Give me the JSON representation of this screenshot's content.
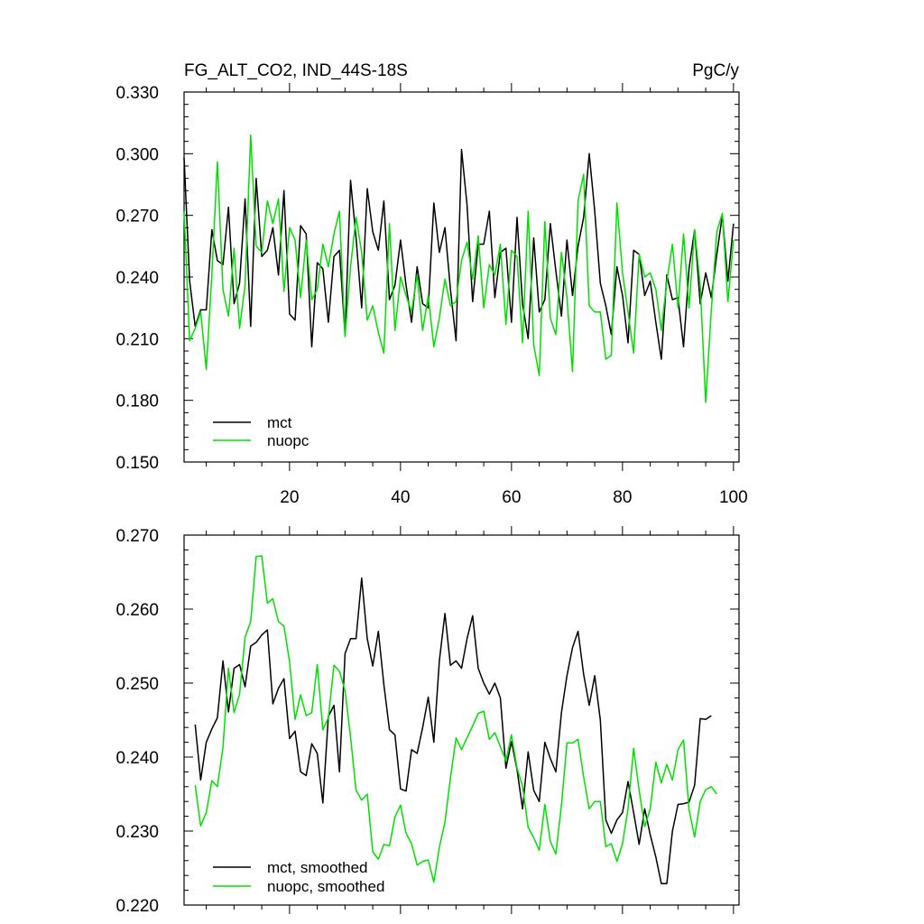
{
  "colors": {
    "mct": "#000000",
    "nuopc": "#00e000"
  },
  "chart_data": [
    {
      "type": "line",
      "title": "FG_ALT_CO2, IND_44S-18S",
      "title_right": "PgC/y",
      "xlabel": "",
      "ylabel": "",
      "xlim": [
        1,
        101
      ],
      "ylim": [
        0.15,
        0.33
      ],
      "x_ticks": [
        20,
        40,
        60,
        80,
        100
      ],
      "x_tick_labels": [
        "20",
        "40",
        "60",
        "80",
        "100"
      ],
      "y_ticks": [
        0.15,
        0.18,
        0.21,
        0.24,
        0.27,
        0.3,
        0.33
      ],
      "y_tick_labels": [
        "0.150",
        "0.180",
        "0.210",
        "0.240",
        "0.270",
        "0.300",
        "0.330"
      ],
      "legend_position": "bottom-left",
      "grid": false,
      "x_start": 1,
      "series": [
        {
          "name": "mct",
          "color": "#000000",
          "values": [
            0.298,
            0.238,
            0.216,
            0.224,
            0.224,
            0.263,
            0.248,
            0.246,
            0.274,
            0.227,
            0.237,
            0.278,
            0.216,
            0.288,
            0.25,
            0.253,
            0.264,
            0.241,
            0.282,
            0.222,
            0.219,
            0.265,
            0.261,
            0.206,
            0.247,
            0.244,
            0.218,
            0.25,
            0.253,
            0.212,
            0.287,
            0.259,
            0.225,
            0.283,
            0.262,
            0.253,
            0.277,
            0.229,
            0.236,
            0.258,
            0.236,
            0.218,
            0.245,
            0.227,
            0.225,
            0.276,
            0.252,
            0.264,
            0.234,
            0.209,
            0.302,
            0.275,
            0.228,
            0.256,
            0.256,
            0.272,
            0.23,
            0.252,
            0.254,
            0.218,
            0.269,
            0.227,
            0.21,
            0.259,
            0.223,
            0.229,
            0.266,
            0.243,
            0.221,
            0.258,
            0.231,
            0.255,
            0.269,
            0.3,
            0.272,
            0.237,
            0.226,
            0.212,
            0.245,
            0.231,
            0.208,
            0.253,
            0.251,
            0.231,
            0.238,
            0.218,
            0.2,
            0.241,
            0.229,
            0.23,
            0.206,
            0.244,
            0.263,
            0.227,
            0.242,
            0.23,
            0.251,
            0.27,
            0.238,
            0.266
          ]
        },
        {
          "name": "nuopc",
          "color": "#00e000",
          "values": [
            0.272,
            0.209,
            0.215,
            0.223,
            0.195,
            0.241,
            0.296,
            0.234,
            0.221,
            0.254,
            0.215,
            0.236,
            0.309,
            0.255,
            0.252,
            0.277,
            0.266,
            0.278,
            0.233,
            0.264,
            0.258,
            0.23,
            0.258,
            0.229,
            0.234,
            0.256,
            0.245,
            0.261,
            0.272,
            0.211,
            0.245,
            0.269,
            0.252,
            0.219,
            0.226,
            0.213,
            0.203,
            0.266,
            0.214,
            0.24,
            0.231,
            0.223,
            0.241,
            0.214,
            0.231,
            0.206,
            0.22,
            0.239,
            0.226,
            0.228,
            0.248,
            0.257,
            0.239,
            0.26,
            0.225,
            0.246,
            0.241,
            0.256,
            0.217,
            0.253,
            0.25,
            0.208,
            0.272,
            0.207,
            0.192,
            0.267,
            0.22,
            0.212,
            0.252,
            0.23,
            0.194,
            0.277,
            0.29,
            0.226,
            0.223,
            0.223,
            0.2,
            0.202,
            0.276,
            0.242,
            0.223,
            0.203,
            0.251,
            0.24,
            0.242,
            0.234,
            0.214,
            0.238,
            0.256,
            0.225,
            0.261,
            0.225,
            0.263,
            0.236,
            0.179,
            0.224,
            0.262,
            0.271,
            0.228,
            0.258
          ]
        }
      ]
    },
    {
      "type": "line",
      "title": "",
      "xlabel": "",
      "ylabel": "",
      "xlim": [
        1,
        101
      ],
      "ylim": [
        0.22,
        0.27
      ],
      "x_ticks": [
        20,
        40,
        60,
        80,
        100
      ],
      "x_tick_labels": [],
      "y_ticks": [
        0.22,
        0.23,
        0.24,
        0.25,
        0.26,
        0.27
      ],
      "y_tick_labels": [
        "0.220",
        "0.230",
        "0.240",
        "0.250",
        "0.260",
        "0.270"
      ],
      "legend_position": "bottom-left",
      "grid": false,
      "x_start": 3,
      "series": [
        {
          "name": "mct, smoothed",
          "color": "#000000",
          "values": [
            0.2444,
            0.2369,
            0.242,
            0.2438,
            0.2453,
            0.253,
            0.2461,
            0.252,
            0.2525,
            0.2495,
            0.255,
            0.2555,
            0.2565,
            0.2572,
            0.2472,
            0.2493,
            0.2506,
            0.2425,
            0.2435,
            0.238,
            0.2375,
            0.2418,
            0.2405,
            0.2338,
            0.2455,
            0.247,
            0.238,
            0.254,
            0.256,
            0.256,
            0.2642,
            0.256,
            0.2523,
            0.257,
            0.2498,
            0.2437,
            0.243,
            0.2357,
            0.2354,
            0.241,
            0.2405,
            0.244,
            0.2481,
            0.242,
            0.253,
            0.2594,
            0.2524,
            0.253,
            0.252,
            0.256,
            0.2591,
            0.252,
            0.25,
            0.2485,
            0.25,
            0.248,
            0.2385,
            0.2421,
            0.2383,
            0.233,
            0.2407,
            0.2355,
            0.234,
            0.242,
            0.2398,
            0.238,
            0.246,
            0.251,
            0.2548,
            0.257,
            0.2512,
            0.247,
            0.251,
            0.245,
            0.2315,
            0.2297,
            0.2315,
            0.2325,
            0.2367,
            0.2325,
            0.2282,
            0.233,
            0.2295,
            0.2265,
            0.2229,
            0.2229,
            0.23,
            0.2336,
            0.2337,
            0.2339,
            0.2362,
            0.2452,
            0.2451,
            0.2456
          ]
        },
        {
          "name": "nuopc, smoothed",
          "color": "#00e000",
          "values": [
            0.2362,
            0.2307,
            0.2325,
            0.2368,
            0.236,
            0.2413,
            0.252,
            0.246,
            0.2485,
            0.2562,
            0.2583,
            0.2671,
            0.2672,
            0.2608,
            0.2614,
            0.2583,
            0.2577,
            0.2529,
            0.2451,
            0.2484,
            0.2456,
            0.246,
            0.2525,
            0.2437,
            0.2453,
            0.2524,
            0.2516,
            0.249,
            0.2427,
            0.2355,
            0.2342,
            0.235,
            0.2272,
            0.2262,
            0.2282,
            0.228,
            0.2319,
            0.2335,
            0.2297,
            0.2283,
            0.2254,
            0.2259,
            0.2261,
            0.2231,
            0.2278,
            0.2312,
            0.2372,
            0.2426,
            0.241,
            0.2426,
            0.2442,
            0.2459,
            0.2462,
            0.2424,
            0.2433,
            0.2414,
            0.2395,
            0.243,
            0.2385,
            0.2361,
            0.2305,
            0.2291,
            0.2274,
            0.2336,
            0.2286,
            0.2269,
            0.2335,
            0.2419,
            0.2419,
            0.2424,
            0.2373,
            0.233,
            0.234,
            0.234,
            0.2279,
            0.2283,
            0.2259,
            0.2283,
            0.233,
            0.2412,
            0.2355,
            0.2306,
            0.233,
            0.2393,
            0.2365,
            0.239,
            0.2369,
            0.241,
            0.2423,
            0.2329,
            0.2292,
            0.234,
            0.2356,
            0.236,
            0.235
          ]
        }
      ]
    }
  ]
}
